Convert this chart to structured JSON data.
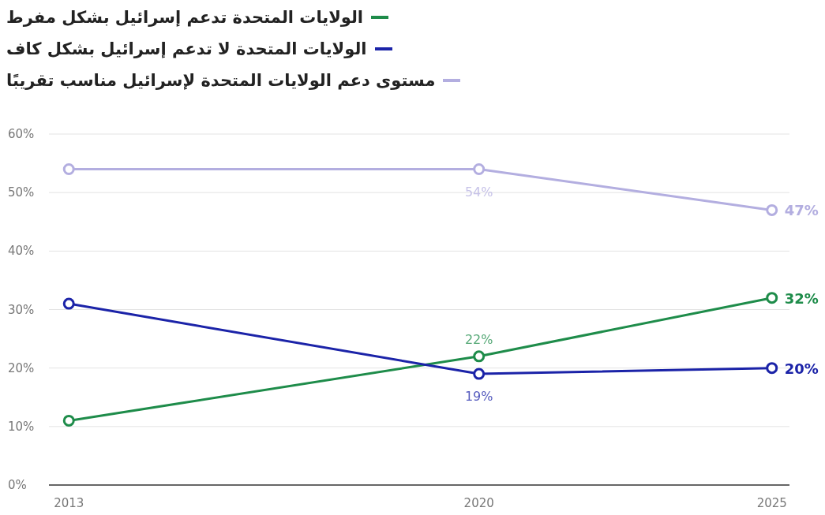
{
  "chart_data": {
    "type": "line",
    "x": [
      2013,
      2020,
      2025
    ],
    "xlim": [
      2012.66,
      2025.3
    ],
    "xticks": [
      2013,
      2020,
      2025
    ],
    "ylim": [
      0,
      60
    ],
    "yticks": [
      {
        "value": 0,
        "label": "0%"
      },
      {
        "value": 10,
        "label": "10%"
      },
      {
        "value": 20,
        "label": "20%"
      },
      {
        "value": 30,
        "label": "30%"
      },
      {
        "value": 40,
        "label": "40%"
      },
      {
        "value": 50,
        "label": "50%"
      },
      {
        "value": 60,
        "label": "60%"
      }
    ],
    "grid": "y",
    "legend": "top left",
    "marker": "circle",
    "line_style": "solid",
    "series": [
      {
        "name": "الولايات المتحدة تدعم إسرائيل بشكل مفرط",
        "color": "#1e8c4a",
        "values": [
          11,
          22,
          32
        ],
        "value_labels": [
          null,
          "22%",
          "32%"
        ]
      },
      {
        "name": "الولايات المتحدة لا تدعم إسرائيل بشكل كاف",
        "color": "#1b23a8",
        "values": [
          31,
          19,
          20
        ],
        "value_labels": [
          null,
          "19%",
          "20%"
        ]
      },
      {
        "name": "مستوى دعم الولايات المتحدة لإسرائيل مناسب تقريبًا",
        "color": "#b3aee0",
        "values": [
          54,
          54,
          47
        ],
        "value_labels": [
          null,
          "54%",
          "47%"
        ]
      }
    ]
  }
}
